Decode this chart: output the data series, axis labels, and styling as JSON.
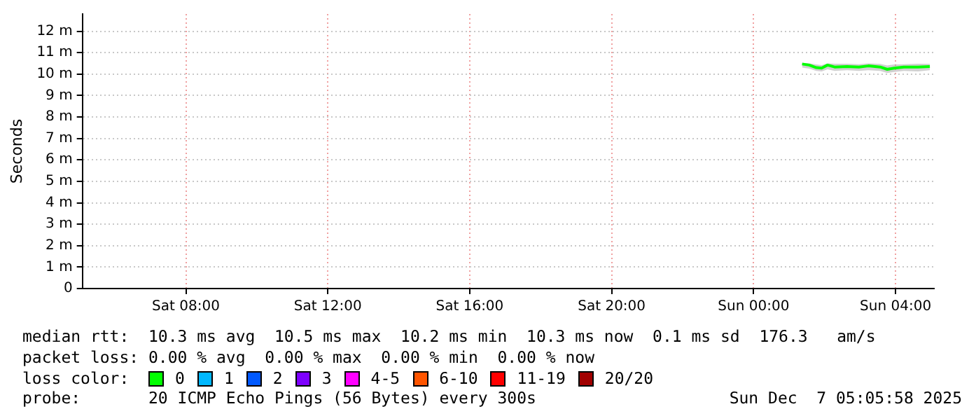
{
  "chart_data": {
    "type": "line",
    "ylabel": "Seconds",
    "xlim": [
      "2025-12-06T05:05",
      "2025-12-07T05:05"
    ],
    "xticks": [
      {
        "value": "2025-12-06T08:00",
        "label": "Sat 08:00"
      },
      {
        "value": "2025-12-06T12:00",
        "label": "Sat 12:00"
      },
      {
        "value": "2025-12-06T16:00",
        "label": "Sat 16:00"
      },
      {
        "value": "2025-12-06T20:00",
        "label": "Sat 20:00"
      },
      {
        "value": "2025-12-07T00:00",
        "label": "Sun 00:00"
      },
      {
        "value": "2025-12-07T04:00",
        "label": "Sun 04:00"
      }
    ],
    "ylim": [
      0,
      12.8
    ],
    "yticks": [
      0,
      {
        "value": 1,
        "label": "1 m"
      },
      {
        "value": 2,
        "label": "2 m"
      },
      {
        "value": 3,
        "label": "3 m"
      },
      {
        "value": 4,
        "label": "4 m"
      },
      {
        "value": 5,
        "label": "5 m"
      },
      {
        "value": 6,
        "label": "6 m"
      },
      {
        "value": 7,
        "label": "7 m"
      },
      {
        "value": 8,
        "label": "8 m"
      },
      {
        "value": 9,
        "label": "9 m"
      },
      {
        "value": 10,
        "label": "10 m"
      },
      {
        "value": 11,
        "label": "11 m"
      },
      {
        "value": 12,
        "label": "12 m"
      }
    ],
    "x": [
      "2025-12-07T01:22",
      "2025-12-07T01:34",
      "2025-12-07T01:46",
      "2025-12-07T01:55",
      "2025-12-07T02:05",
      "2025-12-07T02:17",
      "2025-12-07T02:38",
      "2025-12-07T02:58",
      "2025-12-07T03:14",
      "2025-12-07T03:34",
      "2025-12-07T03:46",
      "2025-12-07T03:58",
      "2025-12-07T04:14",
      "2025-12-07T04:38",
      "2025-12-07T04:58"
    ],
    "series": [
      {
        "name": "0",
        "color": "#00ff00",
        "values": [
          10.47,
          10.42,
          10.3,
          10.28,
          10.42,
          10.33,
          10.35,
          10.33,
          10.38,
          10.33,
          10.22,
          10.28,
          10.33,
          10.33,
          10.35
        ],
        "lower": [
          10.3,
          10.25,
          10.15,
          10.12,
          10.22,
          10.15,
          10.18,
          10.15,
          10.18,
          10.15,
          10.05,
          10.1,
          10.15,
          10.12,
          10.18
        ],
        "upper": [
          10.52,
          10.5,
          10.45,
          10.42,
          10.5,
          10.48,
          10.48,
          10.46,
          10.5,
          10.47,
          10.4,
          10.45,
          10.46,
          10.48,
          10.47
        ]
      },
      {
        "name": "1",
        "color": "#00b8ff",
        "values": [
          null,
          null,
          null,
          null,
          null,
          null,
          null,
          null,
          null,
          null,
          null,
          null,
          null,
          null,
          null
        ]
      },
      {
        "name": "2",
        "color": "#0059ff",
        "values": [
          null,
          null,
          null,
          null,
          null,
          null,
          null,
          null,
          null,
          null,
          null,
          null,
          null,
          null,
          null
        ]
      },
      {
        "name": "3",
        "color": "#7e00ff",
        "values": [
          null,
          null,
          null,
          null,
          null,
          null,
          null,
          null,
          null,
          null,
          null,
          null,
          null,
          null,
          null
        ]
      },
      {
        "name": "4-5",
        "color": "#ff00ff",
        "values": [
          null,
          null,
          null,
          null,
          null,
          null,
          null,
          null,
          null,
          null,
          null,
          null,
          null,
          null,
          null
        ]
      },
      {
        "name": "6-10",
        "color": "#ff5500",
        "values": [
          null,
          null,
          null,
          null,
          null,
          null,
          null,
          null,
          null,
          null,
          null,
          null,
          null,
          null,
          null
        ]
      },
      {
        "name": "11-19",
        "color": "#ff0000",
        "values": [
          null,
          null,
          null,
          null,
          null,
          null,
          null,
          null,
          null,
          null,
          null,
          null,
          null,
          null,
          null
        ]
      },
      {
        "name": "20/20",
        "color": "#a10000",
        "values": [
          null,
          null,
          null,
          null,
          null,
          null,
          null,
          null,
          null,
          null,
          null,
          null,
          null,
          null,
          null
        ]
      }
    ],
    "legend": "bottom",
    "grid": true,
    "marker": "none",
    "line_style": "solid",
    "annotations": [
      "median rtt:  10.3 ms avg  10.5 ms max  10.2 ms min  10.3 ms now  0.1 ms sd  176.3   am/s",
      "packet loss: 0.00 % avg  0.00 % max  0.00 % min  0.00 % now",
      "loss color:",
      "probe:       20 ICMP Echo Pings (56 Bytes) every 300s",
      "Sun Dec  7 05:05:58 2025"
    ]
  }
}
